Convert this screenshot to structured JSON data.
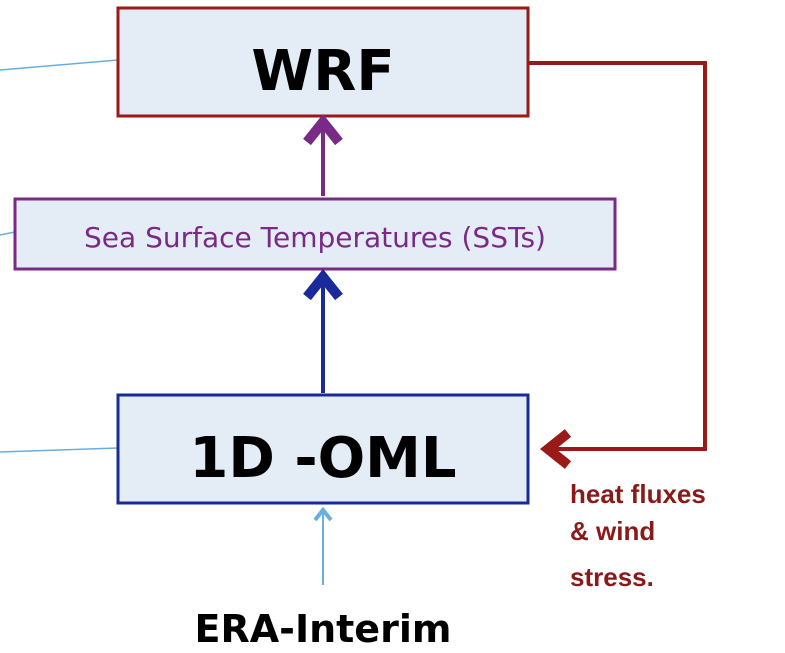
{
  "nodes": [
    {
      "label": "WRF"
    },
    {
      "label": "Sea Surface Temperatures (SSTs)"
    },
    {
      "label": "1D -OML"
    },
    {
      "label": "ERA-Interim"
    }
  ],
  "feedback_label": [
    "heat fluxes",
    "& wind",
    "stress."
  ]
}
